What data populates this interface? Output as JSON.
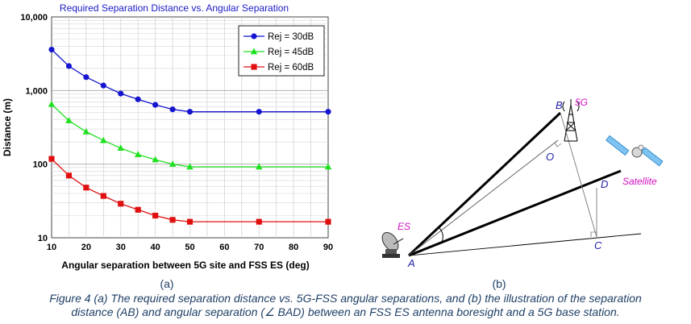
{
  "chart_data": {
    "type": "line",
    "title": "Required Separation Distance vs. Angular Separation",
    "xlabel": "Angular separation between 5G site and FSS ES (deg)",
    "ylabel": "Distance (m)",
    "xlim": [
      10,
      90
    ],
    "ylim": [
      10,
      10000
    ],
    "yscale": "log",
    "xticks": [
      "10",
      "20",
      "30",
      "40",
      "50",
      "60",
      "70",
      "80",
      "90"
    ],
    "yticks": [
      "10",
      "100",
      "1,000",
      "10,000"
    ],
    "grid": true,
    "legend_position": "top-right",
    "x": [
      10,
      15,
      20,
      25,
      30,
      35,
      40,
      45,
      50,
      70,
      90
    ],
    "series": [
      {
        "name": "Rej = 30dB",
        "color": "#1515d0",
        "marker": "circle",
        "values": [
          3600,
          2150,
          1520,
          1170,
          910,
          760,
          640,
          555,
          515,
          515,
          515
        ]
      },
      {
        "name": "Rej = 45dB",
        "color": "#20e020",
        "marker": "triangle",
        "values": [
          650,
          390,
          275,
          210,
          165,
          135,
          115,
          100,
          92,
          92,
          92
        ]
      },
      {
        "name": "Rej = 60dB",
        "color": "#e01010",
        "marker": "square",
        "values": [
          118,
          70,
          48,
          37,
          29,
          24,
          20,
          17.5,
          16.5,
          16.5,
          16.5
        ]
      }
    ]
  },
  "diagram": {
    "points": {
      "A": "A",
      "B": "B",
      "C": "C",
      "D": "D",
      "O": "O"
    },
    "labels": {
      "es": "ES",
      "fiveg": "5G",
      "satellite": "Satellite"
    },
    "icon_names": [
      "satellite-dish-icon",
      "cell-tower-icon",
      "satellite-icon"
    ]
  },
  "subcaptions": {
    "a": "(a)",
    "b": "(b)"
  },
  "caption": {
    "line1": "Figure 4 (a) The required separation distance vs. 5G-FSS angular separations, and (b) the illustration of the separation",
    "line2": "distance (AB) and angular separation (∠ BAD) between an FSS ES antenna boresight and a 5G base station."
  }
}
